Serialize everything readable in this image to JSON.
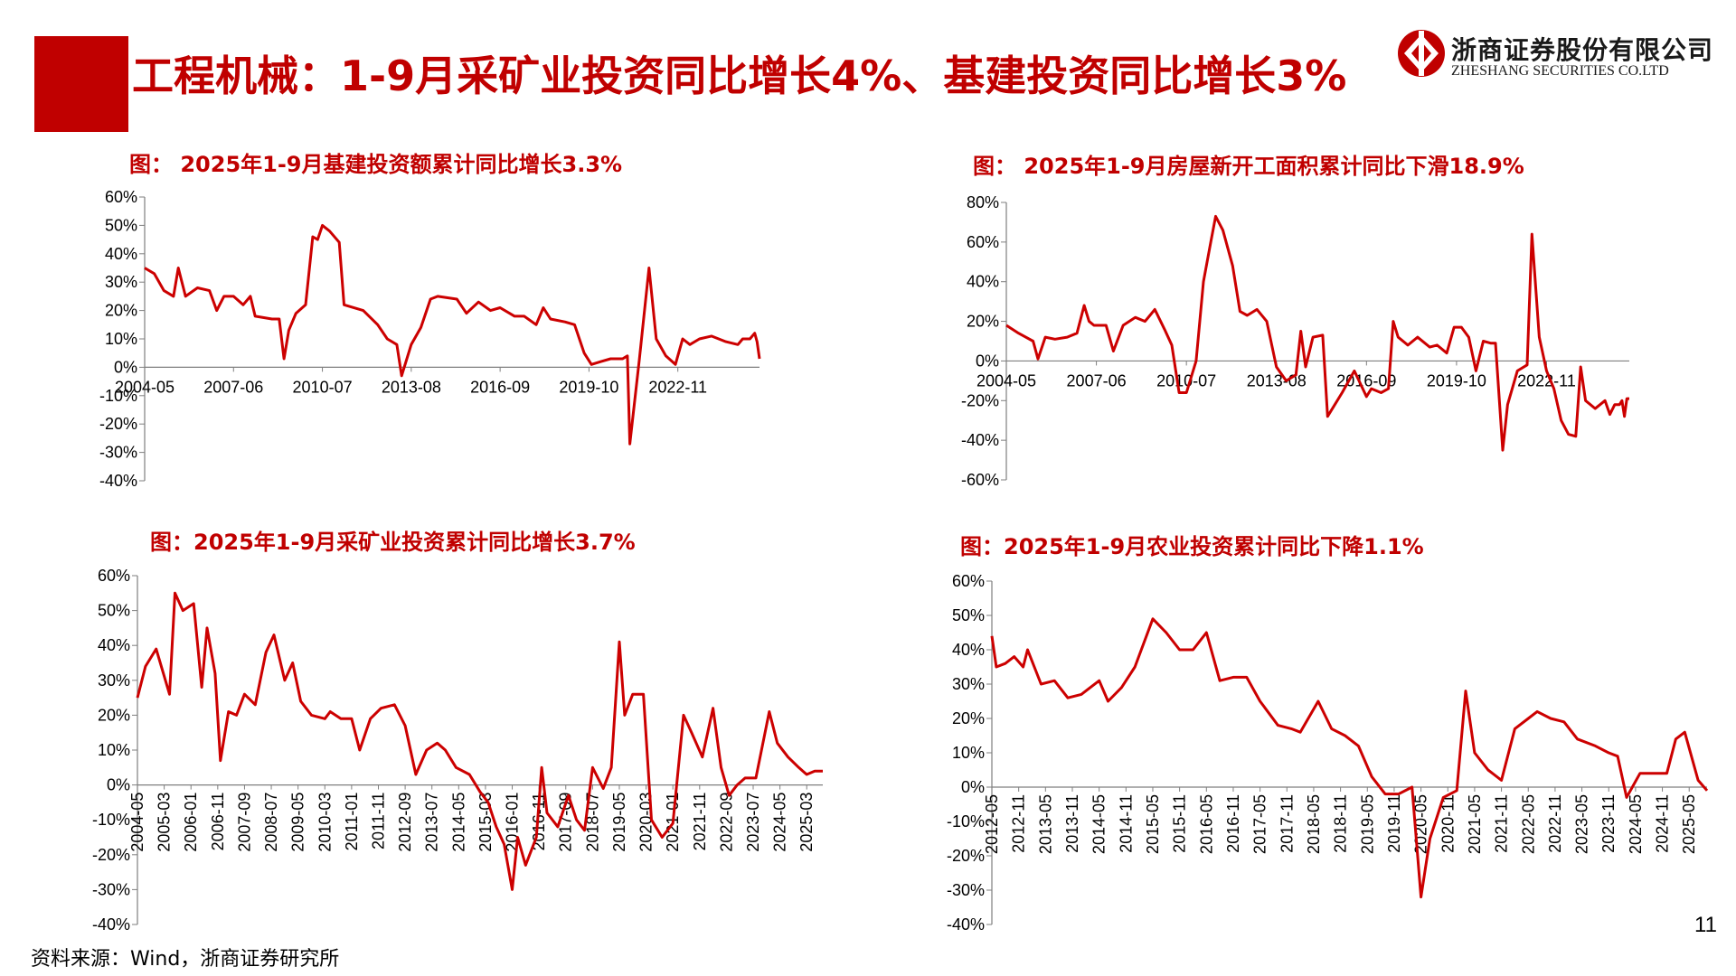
{
  "header": {
    "title": "工程机械：1-9月采矿业投资同比增长4%、基建投资同比增长3%",
    "logo_cn": "浙商证券股份有限公司",
    "logo_en": "ZHESHANG SECURITIES CO.LTD",
    "brand_color": "#c00000"
  },
  "footer": {
    "source": "资料来源：Wind，浙商证券研究所",
    "page": "11"
  },
  "chart_data": [
    {
      "type": "line",
      "title": "图： 2025年1-9月基建投资额累计同比增长3.3%",
      "x_start": "2004-05",
      "x_end": "2025-09",
      "ylim": [
        -40,
        60
      ],
      "yticks": [
        -40,
        -30,
        -20,
        -10,
        0,
        10,
        20,
        30,
        40,
        50,
        60
      ],
      "tick_labels": [
        "2004-05",
        "2007-06",
        "2010-07",
        "2013-08",
        "2016-09",
        "2019-10",
        "2022-11"
      ],
      "tick_labels_rotated": false,
      "line_color": "#cc0000",
      "points": [
        [
          "2004-05",
          35
        ],
        [
          "2004-09",
          33
        ],
        [
          "2005-01",
          27
        ],
        [
          "2005-05",
          25
        ],
        [
          "2005-07",
          35
        ],
        [
          "2005-10",
          25
        ],
        [
          "2006-03",
          28
        ],
        [
          "2006-08",
          27
        ],
        [
          "2006-11",
          20
        ],
        [
          "2007-02",
          25
        ],
        [
          "2007-06",
          25
        ],
        [
          "2007-10",
          22
        ],
        [
          "2008-01",
          25
        ],
        [
          "2008-03",
          18
        ],
        [
          "2008-10",
          17
        ],
        [
          "2009-01",
          17
        ],
        [
          "2009-03",
          3
        ],
        [
          "2009-05",
          13
        ],
        [
          "2009-08",
          19
        ],
        [
          "2009-12",
          22
        ],
        [
          "2010-03",
          46
        ],
        [
          "2010-05",
          45
        ],
        [
          "2010-07",
          50
        ],
        [
          "2010-10",
          48
        ],
        [
          "2011-02",
          44
        ],
        [
          "2011-04",
          22
        ],
        [
          "2011-12",
          20
        ],
        [
          "2012-06",
          15
        ],
        [
          "2012-10",
          10
        ],
        [
          "2013-02",
          8
        ],
        [
          "2013-04",
          -3
        ],
        [
          "2013-08",
          8
        ],
        [
          "2013-12",
          14
        ],
        [
          "2014-04",
          24
        ],
        [
          "2014-07",
          25
        ],
        [
          "2015-03",
          24
        ],
        [
          "2015-07",
          19
        ],
        [
          "2015-12",
          23
        ],
        [
          "2016-05",
          20
        ],
        [
          "2016-09",
          21
        ],
        [
          "2017-03",
          18
        ],
        [
          "2017-07",
          18
        ],
        [
          "2017-12",
          15
        ],
        [
          "2018-03",
          21
        ],
        [
          "2018-06",
          17
        ],
        [
          "2018-12",
          16
        ],
        [
          "2019-04",
          15
        ],
        [
          "2019-08",
          5
        ],
        [
          "2019-11",
          1
        ],
        [
          "2020-03",
          2
        ],
        [
          "2020-07",
          3
        ],
        [
          "2020-12",
          3
        ],
        [
          "2021-02",
          4
        ],
        [
          "2021-03",
          -27
        ],
        [
          "2021-07",
          3
        ],
        [
          "2021-11",
          35
        ],
        [
          "2022-02",
          10
        ],
        [
          "2022-06",
          4
        ],
        [
          "2022-10",
          1
        ],
        [
          "2023-01",
          10
        ],
        [
          "2023-04",
          8
        ],
        [
          "2023-08",
          10
        ],
        [
          "2024-01",
          11
        ],
        [
          "2024-07",
          9
        ],
        [
          "2024-12",
          8
        ],
        [
          "2025-02",
          10
        ],
        [
          "2025-05",
          10
        ],
        [
          "2025-07",
          12
        ],
        [
          "2025-08",
          9
        ],
        [
          "2025-09",
          3
        ]
      ]
    },
    {
      "type": "line",
      "title": "图： 2025年1-9月房屋新开工面积累计同比下滑18.9%",
      "x_start": "2004-05",
      "x_end": "2025-09",
      "ylim": [
        -60,
        80
      ],
      "yticks": [
        -60,
        -40,
        -20,
        0,
        20,
        40,
        60,
        80
      ],
      "tick_labels": [
        "2004-05",
        "2007-06",
        "2010-07",
        "2013-08",
        "2016-09",
        "2019-10",
        "2022-11"
      ],
      "tick_labels_rotated": false,
      "line_color": "#cc0000",
      "points": [
        [
          "2004-05",
          18
        ],
        [
          "2004-10",
          14
        ],
        [
          "2005-04",
          10
        ],
        [
          "2005-06",
          1
        ],
        [
          "2005-09",
          12
        ],
        [
          "2006-01",
          11
        ],
        [
          "2006-06",
          12
        ],
        [
          "2006-10",
          14
        ],
        [
          "2007-01",
          28
        ],
        [
          "2007-03",
          20
        ],
        [
          "2007-05",
          18
        ],
        [
          "2007-10",
          18
        ],
        [
          "2008-01",
          5
        ],
        [
          "2008-05",
          18
        ],
        [
          "2008-10",
          22
        ],
        [
          "2009-02",
          20
        ],
        [
          "2009-06",
          26
        ],
        [
          "2009-10",
          16
        ],
        [
          "2010-01",
          8
        ],
        [
          "2010-04",
          -16
        ],
        [
          "2010-07",
          -16
        ],
        [
          "2010-11",
          0
        ],
        [
          "2011-02",
          40
        ],
        [
          "2011-05",
          60
        ],
        [
          "2011-07",
          73
        ],
        [
          "2011-10",
          66
        ],
        [
          "2012-02",
          48
        ],
        [
          "2012-05",
          25
        ],
        [
          "2012-08",
          23
        ],
        [
          "2012-12",
          26
        ],
        [
          "2013-04",
          20
        ],
        [
          "2013-08",
          -3
        ],
        [
          "2013-12",
          -10
        ],
        [
          "2014-04",
          -7
        ],
        [
          "2014-06",
          15
        ],
        [
          "2014-08",
          -3
        ],
        [
          "2014-11",
          12
        ],
        [
          "2015-03",
          13
        ],
        [
          "2015-05",
          -28
        ],
        [
          "2015-11",
          -16
        ],
        [
          "2016-04",
          -5
        ],
        [
          "2016-09",
          -18
        ],
        [
          "2016-11",
          -14
        ],
        [
          "2017-03",
          -16
        ],
        [
          "2017-06",
          -14
        ],
        [
          "2017-08",
          20
        ],
        [
          "2017-10",
          12
        ],
        [
          "2018-02",
          8
        ],
        [
          "2018-06",
          12
        ],
        [
          "2018-11",
          7
        ],
        [
          "2019-02",
          8
        ],
        [
          "2019-06",
          4
        ],
        [
          "2019-09",
          17
        ],
        [
          "2019-12",
          17
        ],
        [
          "2020-03",
          12
        ],
        [
          "2020-06",
          -5
        ],
        [
          "2020-09",
          10
        ],
        [
          "2020-12",
          9
        ],
        [
          "2021-02",
          9
        ],
        [
          "2021-05",
          -45
        ],
        [
          "2021-07",
          -22
        ],
        [
          "2021-11",
          -5
        ],
        [
          "2022-03",
          -2
        ],
        [
          "2022-05",
          64
        ],
        [
          "2022-08",
          12
        ],
        [
          "2022-11",
          -5
        ],
        [
          "2023-02",
          -14
        ],
        [
          "2023-05",
          -30
        ],
        [
          "2023-08",
          -37
        ],
        [
          "2023-11",
          -38
        ],
        [
          "2024-01",
          -3
        ],
        [
          "2024-03",
          -20
        ],
        [
          "2024-07",
          -24
        ],
        [
          "2024-11",
          -20
        ],
        [
          "2025-01",
          -27
        ],
        [
          "2025-03",
          -22
        ],
        [
          "2025-05",
          -22
        ],
        [
          "2025-06",
          -20
        ],
        [
          "2025-07",
          -28
        ],
        [
          "2025-08",
          -19
        ],
        [
          "2025-09",
          -19
        ]
      ]
    },
    {
      "type": "line",
      "title": "图：2025年1-9月采矿业投资累计同比增长3.7%",
      "x_start": "2004-05",
      "x_end": "2025-09",
      "ylim": [
        -40,
        60
      ],
      "yticks": [
        -40,
        -30,
        -20,
        -10,
        0,
        10,
        20,
        30,
        40,
        50,
        60
      ],
      "tick_labels": [
        "2004-05",
        "2005-03",
        "2006-01",
        "2006-11",
        "2007-09",
        "2008-07",
        "2009-05",
        "2010-03",
        "2011-01",
        "2011-11",
        "2012-09",
        "2013-07",
        "2014-05",
        "2015-03",
        "2016-01",
        "2016-11",
        "2017-09",
        "2018-07",
        "2019-05",
        "2020-03",
        "2021-01",
        "2021-11",
        "2022-09",
        "2023-07",
        "2024-05",
        "2025-03"
      ],
      "tick_labels_rotated": true,
      "line_color": "#cc0000",
      "points": [
        [
          "2004-05",
          25
        ],
        [
          "2004-08",
          34
        ],
        [
          "2004-12",
          39
        ],
        [
          "2005-05",
          26
        ],
        [
          "2005-07",
          55
        ],
        [
          "2005-10",
          50
        ],
        [
          "2006-02",
          52
        ],
        [
          "2006-05",
          28
        ],
        [
          "2006-07",
          45
        ],
        [
          "2006-10",
          32
        ],
        [
          "2006-12",
          7
        ],
        [
          "2007-03",
          21
        ],
        [
          "2007-06",
          20
        ],
        [
          "2007-09",
          26
        ],
        [
          "2008-01",
          23
        ],
        [
          "2008-05",
          38
        ],
        [
          "2008-08",
          43
        ],
        [
          "2008-12",
          30
        ],
        [
          "2009-03",
          35
        ],
        [
          "2009-06",
          24
        ],
        [
          "2009-10",
          20
        ],
        [
          "2010-03",
          19
        ],
        [
          "2010-05",
          21
        ],
        [
          "2010-09",
          19
        ],
        [
          "2011-01",
          19
        ],
        [
          "2011-04",
          10
        ],
        [
          "2011-08",
          19
        ],
        [
          "2011-12",
          22
        ],
        [
          "2012-05",
          23
        ],
        [
          "2012-09",
          17
        ],
        [
          "2013-01",
          3
        ],
        [
          "2013-05",
          10
        ],
        [
          "2013-09",
          12
        ],
        [
          "2013-12",
          10
        ],
        [
          "2014-04",
          5
        ],
        [
          "2014-09",
          3
        ],
        [
          "2015-01",
          -2
        ],
        [
          "2015-04",
          -5
        ],
        [
          "2015-07",
          -12
        ],
        [
          "2015-10",
          -17
        ],
        [
          "2016-01",
          -30
        ],
        [
          "2016-03",
          -15
        ],
        [
          "2016-06",
          -23
        ],
        [
          "2016-10",
          -15
        ],
        [
          "2016-12",
          5
        ],
        [
          "2017-02",
          -8
        ],
        [
          "2017-06",
          -12
        ],
        [
          "2017-10",
          -3
        ],
        [
          "2018-01",
          -10
        ],
        [
          "2018-04",
          -13
        ],
        [
          "2018-07",
          5
        ],
        [
          "2018-11",
          -1
        ],
        [
          "2019-02",
          5
        ],
        [
          "2019-05",
          41
        ],
        [
          "2019-07",
          20
        ],
        [
          "2019-10",
          26
        ],
        [
          "2020-02",
          26
        ],
        [
          "2020-05",
          -10
        ],
        [
          "2020-09",
          -15
        ],
        [
          "2021-01",
          -11
        ],
        [
          "2021-05",
          20
        ],
        [
          "2021-08",
          15
        ],
        [
          "2021-12",
          8
        ],
        [
          "2022-04",
          22
        ],
        [
          "2022-07",
          5
        ],
        [
          "2022-10",
          -3
        ],
        [
          "2023-01",
          0
        ],
        [
          "2023-04",
          2
        ],
        [
          "2023-08",
          2
        ],
        [
          "2024-01",
          21
        ],
        [
          "2024-04",
          12
        ],
        [
          "2024-08",
          8
        ],
        [
          "2024-12",
          5
        ],
        [
          "2025-03",
          3
        ],
        [
          "2025-06",
          4
        ],
        [
          "2025-09",
          4
        ]
      ]
    },
    {
      "type": "line",
      "title": "图：2025年1-9月农业投资累计同比下降1.1%",
      "x_start": "2012-05",
      "x_end": "2025-09",
      "ylim": [
        -40,
        60
      ],
      "yticks": [
        -40,
        -30,
        -20,
        -10,
        0,
        10,
        20,
        30,
        40,
        50,
        60
      ],
      "tick_labels": [
        "2012-05",
        "2012-11",
        "2013-05",
        "2013-11",
        "2014-05",
        "2014-11",
        "2015-05",
        "2015-11",
        "2016-05",
        "2016-11",
        "2017-05",
        "2017-11",
        "2018-05",
        "2018-11",
        "2019-05",
        "2019-11",
        "2020-05",
        "2020-11",
        "2021-05",
        "2021-11",
        "2022-05",
        "2022-11",
        "2023-05",
        "2023-11",
        "2024-05",
        "2024-11",
        "2025-05"
      ],
      "tick_labels_rotated": true,
      "line_color": "#cc0000",
      "points": [
        [
          "2012-05",
          44
        ],
        [
          "2012-06",
          35
        ],
        [
          "2012-08",
          36
        ],
        [
          "2012-10",
          38
        ],
        [
          "2012-12",
          35
        ],
        [
          "2013-01",
          40
        ],
        [
          "2013-04",
          30
        ],
        [
          "2013-07",
          31
        ],
        [
          "2013-10",
          26
        ],
        [
          "2014-01",
          27
        ],
        [
          "2014-05",
          31
        ],
        [
          "2014-07",
          25
        ],
        [
          "2014-10",
          29
        ],
        [
          "2015-01",
          35
        ],
        [
          "2015-05",
          49
        ],
        [
          "2015-08",
          45
        ],
        [
          "2015-11",
          40
        ],
        [
          "2016-02",
          40
        ],
        [
          "2016-05",
          45
        ],
        [
          "2016-08",
          31
        ],
        [
          "2016-11",
          32
        ],
        [
          "2017-02",
          32
        ],
        [
          "2017-05",
          25
        ],
        [
          "2017-09",
          18
        ],
        [
          "2017-12",
          17
        ],
        [
          "2018-02",
          16
        ],
        [
          "2018-06",
          25
        ],
        [
          "2018-09",
          17
        ],
        [
          "2018-12",
          15
        ],
        [
          "2019-03",
          12
        ],
        [
          "2019-06",
          3
        ],
        [
          "2019-09",
          -2
        ],
        [
          "2019-12",
          -2
        ],
        [
          "2020-03",
          0
        ],
        [
          "2020-05",
          -32
        ],
        [
          "2020-07",
          -15
        ],
        [
          "2020-10",
          -3
        ],
        [
          "2021-01",
          -1
        ],
        [
          "2021-03",
          28
        ],
        [
          "2021-05",
          10
        ],
        [
          "2021-08",
          5
        ],
        [
          "2021-11",
          2
        ],
        [
          "2022-02",
          17
        ],
        [
          "2022-05",
          20
        ],
        [
          "2022-07",
          22
        ],
        [
          "2022-10",
          20
        ],
        [
          "2023-01",
          19
        ],
        [
          "2023-04",
          14
        ],
        [
          "2023-08",
          12
        ],
        [
          "2023-11",
          10
        ],
        [
          "2024-01",
          9
        ],
        [
          "2024-03",
          -3
        ],
        [
          "2024-06",
          4
        ],
        [
          "2024-09",
          4
        ],
        [
          "2024-12",
          4
        ],
        [
          "2025-02",
          14
        ],
        [
          "2025-04",
          16
        ],
        [
          "2025-07",
          2
        ],
        [
          "2025-09",
          -1
        ]
      ]
    }
  ]
}
